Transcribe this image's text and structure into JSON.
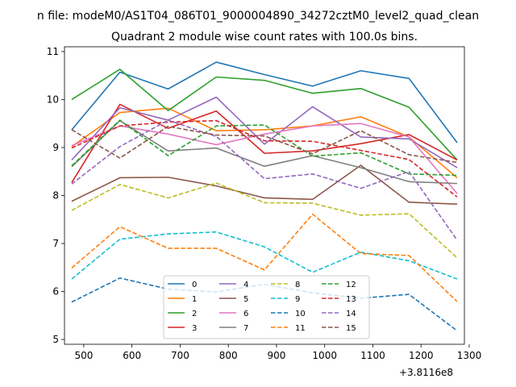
{
  "chart_data": {
    "type": "line",
    "suptitle": "n file: modeM0/AS1T04_086T01_9000004890_34272cztM0_level2_quad_clean",
    "title": "Quadrant 2 module wise count rates with 100.0s bins.",
    "xlabel": "",
    "ylabel": "",
    "x_offset_label": "+3.8116e8",
    "x": [
      475,
      575,
      675,
      775,
      875,
      975,
      1075,
      1175,
      1275
    ],
    "xlim": [
      460,
      1290
    ],
    "ylim": [
      4.9,
      11.1
    ],
    "xticks": [
      500,
      600,
      700,
      800,
      900,
      1000,
      1100,
      1200,
      1300
    ],
    "yticks": [
      5,
      6,
      7,
      8,
      9,
      10,
      11
    ],
    "grid": false,
    "legend": {
      "placement": "lower-center",
      "columns": 4
    },
    "series": [
      {
        "name": "0",
        "color": "#1f77b4",
        "style": "solid",
        "values": [
          9.37,
          10.57,
          10.22,
          10.78,
          10.52,
          10.28,
          10.6,
          10.44,
          9.1
        ]
      },
      {
        "name": "1",
        "color": "#ff7f0e",
        "style": "solid",
        "values": [
          9.02,
          9.73,
          9.82,
          9.35,
          9.37,
          9.45,
          9.64,
          9.22,
          8.37
        ]
      },
      {
        "name": "2",
        "color": "#2ca02c",
        "style": "solid",
        "values": [
          10.0,
          10.63,
          9.77,
          10.47,
          10.4,
          10.13,
          10.23,
          9.84,
          8.74
        ]
      },
      {
        "name": "3",
        "color": "#d62728",
        "style": "solid",
        "values": [
          8.27,
          9.9,
          9.4,
          9.76,
          8.88,
          8.93,
          9.08,
          9.27,
          8.74
        ]
      },
      {
        "name": "4",
        "color": "#9467bd",
        "style": "solid",
        "values": [
          8.74,
          9.83,
          9.57,
          10.05,
          9.07,
          9.85,
          9.22,
          9.18,
          8.58
        ]
      },
      {
        "name": "5",
        "color": "#8c564b",
        "style": "solid",
        "values": [
          7.88,
          8.37,
          8.38,
          8.2,
          7.95,
          7.92,
          8.63,
          7.86,
          7.82
        ]
      },
      {
        "name": "6",
        "color": "#e377c2",
        "style": "solid",
        "values": [
          9.04,
          9.45,
          9.28,
          9.06,
          9.28,
          9.45,
          9.5,
          9.22,
          8.04
        ]
      },
      {
        "name": "7",
        "color": "#7f7f7f",
        "style": "solid",
        "values": [
          8.6,
          9.56,
          8.93,
          8.99,
          8.61,
          8.83,
          8.58,
          8.29,
          8.25
        ]
      },
      {
        "name": "8",
        "color": "#bcbd22",
        "style": "dashed",
        "values": [
          7.69,
          8.23,
          7.95,
          8.26,
          7.85,
          7.84,
          7.59,
          7.62,
          6.7
        ]
      },
      {
        "name": "9",
        "color": "#17becf",
        "style": "dashed",
        "values": [
          6.26,
          7.09,
          7.2,
          7.24,
          6.93,
          6.4,
          6.82,
          6.64,
          6.26
        ]
      },
      {
        "name": "10",
        "color": "#1f77b4",
        "style": "dashed",
        "values": [
          5.78,
          6.28,
          6.05,
          5.99,
          6.15,
          5.97,
          5.86,
          5.94,
          5.18
        ]
      },
      {
        "name": "11",
        "color": "#ff7f0e",
        "style": "dashed",
        "values": [
          6.49,
          7.35,
          6.9,
          6.9,
          6.45,
          7.61,
          6.79,
          6.75,
          5.79
        ]
      },
      {
        "name": "12",
        "color": "#2ca02c",
        "style": "dashed",
        "values": [
          8.62,
          9.57,
          8.83,
          9.45,
          9.47,
          8.82,
          8.89,
          8.45,
          8.42
        ]
      },
      {
        "name": "13",
        "color": "#d62728",
        "style": "dashed",
        "values": [
          8.99,
          9.45,
          9.53,
          9.56,
          9.14,
          9.13,
          8.94,
          8.75,
          7.97
        ]
      },
      {
        "name": "14",
        "color": "#9467bd",
        "style": "dashed",
        "values": [
          8.24,
          9.02,
          9.57,
          9.23,
          8.35,
          8.45,
          8.15,
          8.5,
          7.07
        ]
      },
      {
        "name": "15",
        "color": "#8c564b",
        "style": "dashed",
        "values": [
          9.37,
          8.78,
          9.44,
          9.26,
          9.24,
          8.87,
          9.35,
          8.85,
          8.69
        ]
      }
    ]
  }
}
